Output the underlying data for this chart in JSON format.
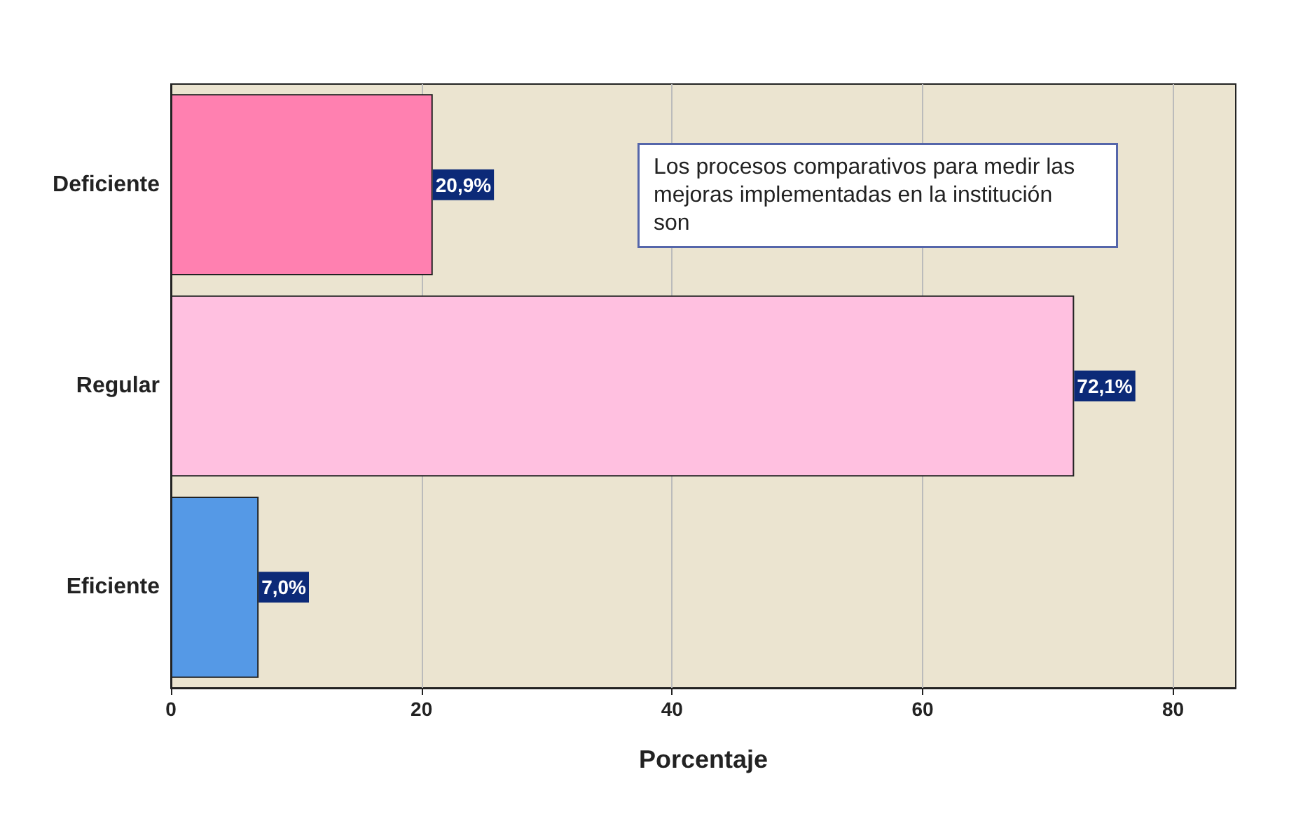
{
  "chart_data": {
    "type": "bar",
    "orientation": "horizontal",
    "categories": [
      "Deficiente",
      "Regular",
      "Eficiente"
    ],
    "values": [
      20.9,
      72.1,
      7.0
    ],
    "colors": [
      "#ff80b0",
      "#ffc0e0",
      "#5599e6"
    ],
    "value_labels": [
      "20,9%",
      "72,1%",
      "7,0%"
    ],
    "xlim": [
      0,
      85
    ],
    "xticks": [
      0,
      20,
      40,
      60,
      80
    ],
    "xlabel": "Porcentaje",
    "annotations": [
      "Los procesos comparativos para medir las mejoras implementadas en la institución son"
    ],
    "grid": "x"
  }
}
